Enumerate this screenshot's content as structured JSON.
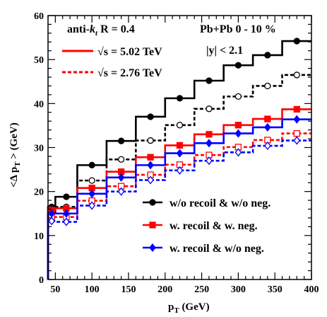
{
  "chart_data": {
    "type": "line",
    "x_axis": {
      "label": "p_T (GeV)",
      "label_main": "p",
      "label_sub": "T",
      "label_unit": " (GeV)",
      "range": [
        40,
        400
      ],
      "ticks": [
        50,
        100,
        150,
        200,
        250,
        300,
        350,
        400
      ]
    },
    "y_axis": {
      "label": "<Δ p_T > (GeV)",
      "label_pre": "<Δ p",
      "label_sub": "T",
      "label_post": " > (GeV)",
      "range": [
        0,
        60
      ],
      "ticks": [
        0,
        10,
        20,
        30,
        40,
        50,
        60
      ]
    },
    "annotations": {
      "jet_pre": "anti-",
      "jet_k": "k",
      "jet_sub": "t",
      "jet_post": " R = 0.4",
      "system": "Pb+Pb 0 - 10 %",
      "rapidity": "|y| < 2.1",
      "energy_502": "√s = 5.02 TeV",
      "energy_276": "√s = 2.76 TeV"
    },
    "bin_edges": [
      40,
      50,
      80,
      120,
      160,
      200,
      240,
      280,
      320,
      360,
      400
    ],
    "series": [
      {
        "key": "norec_502",
        "color": "#000000",
        "dashed": false,
        "marker": "filled-circle",
        "values": [
          16.5,
          18.8,
          26.0,
          31.5,
          37.0,
          41.2,
          45.2,
          48.7,
          51.0,
          54.2
        ]
      },
      {
        "key": "norec_276",
        "color": "#000000",
        "dashed": true,
        "marker": "open-circle",
        "values": [
          15.2,
          16.5,
          22.5,
          27.3,
          31.6,
          35.1,
          38.8,
          41.6,
          44.0,
          46.5
        ]
      },
      {
        "key": "rec_502",
        "color": "#ff0000",
        "dashed": false,
        "marker": "filled-square",
        "values": [
          15.8,
          16.2,
          20.8,
          24.5,
          27.8,
          30.5,
          33.0,
          35.1,
          36.5,
          38.7
        ]
      },
      {
        "key": "rec_276",
        "color": "#ff0000",
        "dashed": true,
        "marker": "open-square",
        "values": [
          14.2,
          14.2,
          17.9,
          21.2,
          23.8,
          26.1,
          28.3,
          30.1,
          31.7,
          33.2
        ]
      },
      {
        "key": "recnoneg_502",
        "color": "#0000ff",
        "dashed": false,
        "marker": "filled-diamond",
        "values": [
          15.0,
          15.0,
          19.5,
          23.2,
          26.0,
          28.7,
          31.0,
          33.2,
          34.6,
          36.4
        ]
      },
      {
        "key": "recnoneg_276",
        "color": "#0000ff",
        "dashed": true,
        "marker": "open-diamond",
        "values": [
          13.3,
          13.1,
          16.8,
          20.0,
          22.6,
          24.8,
          27.0,
          28.9,
          30.4,
          31.6
        ]
      }
    ],
    "legend": [
      {
        "label": "w/o recoil & w/o neg.",
        "color": "#000000",
        "marker": "filled-circle"
      },
      {
        "label": "w. recoil & w. neg.",
        "color": "#ff0000",
        "marker": "filled-square"
      },
      {
        "label": "w. recoil & w/o neg.",
        "color": "#0000ff",
        "marker": "filled-diamond"
      }
    ],
    "legend_placement": "bottom-right",
    "grid": false
  }
}
